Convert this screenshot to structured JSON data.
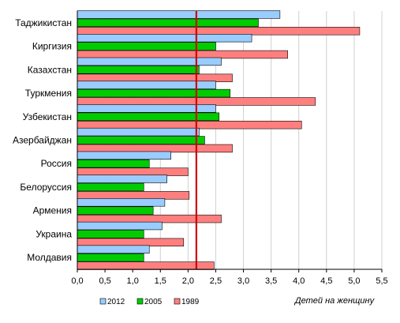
{
  "chart_data": {
    "type": "bar",
    "orientation": "horizontal",
    "categories": [
      "Таджикистан",
      "Киргизия",
      "Казахстан",
      "Туркмения",
      "Узбекистан",
      "Азербайджан",
      "Россия",
      "Белоруссия",
      "Армения",
      "Украина",
      "Молдавия"
    ],
    "series": [
      {
        "name": "2012",
        "color": "#99ccff",
        "values": [
          3.66,
          3.15,
          2.6,
          2.5,
          2.5,
          2.2,
          1.69,
          1.62,
          1.58,
          1.53,
          1.3
        ]
      },
      {
        "name": "2005",
        "color": "#00cc00",
        "values": [
          3.27,
          2.5,
          2.2,
          2.76,
          2.56,
          2.3,
          1.3,
          1.2,
          1.37,
          1.2,
          1.2
        ]
      },
      {
        "name": "1989",
        "color": "#ff7f7f",
        "values": [
          5.1,
          3.8,
          2.8,
          4.3,
          4.05,
          2.8,
          2.0,
          2.02,
          2.6,
          1.92,
          2.47
        ]
      }
    ],
    "xlim": [
      0,
      5.5
    ],
    "xticks": [
      0,
      0.5,
      1,
      1.5,
      2,
      2.5,
      3,
      3.5,
      4,
      4.5,
      5,
      5.5
    ],
    "xtick_labels": [
      "0,0",
      "0,5",
      "1,0",
      "1,5",
      "2,0",
      "2,5",
      "3,0",
      "3,5",
      "4,0",
      "4,5",
      "5,0",
      "5,5"
    ],
    "xlabel": "Детей на женщину",
    "ylabel": "",
    "title": "",
    "reference_line": {
      "value": 2.15,
      "color": "#cc0000"
    },
    "legend_position": "bottom-left",
    "grid": {
      "vertical": true,
      "horizontal": false
    }
  }
}
